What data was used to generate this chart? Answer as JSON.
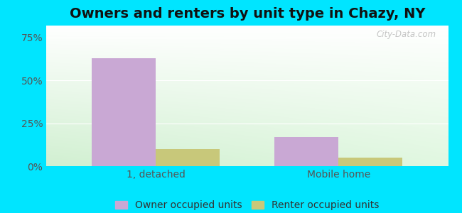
{
  "title": "Owners and renters by unit type in Chazy, NY",
  "categories": [
    "1, detached",
    "Mobile home"
  ],
  "owner_values": [
    63,
    17
  ],
  "renter_values": [
    10,
    5
  ],
  "owner_color": "#c9a8d4",
  "renter_color": "#c8c87a",
  "background_outer": "#00e5ff",
  "yticks": [
    0,
    25,
    50,
    75
  ],
  "ylim": [
    0,
    82
  ],
  "bar_width": 0.35,
  "title_fontsize": 14,
  "tick_fontsize": 10,
  "legend_fontsize": 10,
  "watermark": "City-Data.com",
  "gridline_color": "#ffffff",
  "tick_color": "#555555"
}
